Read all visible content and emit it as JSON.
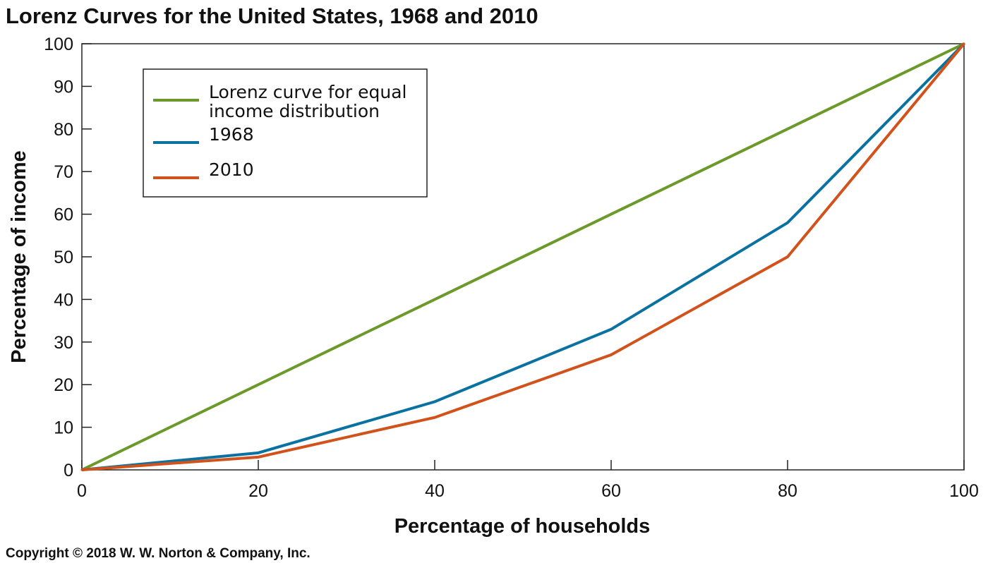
{
  "chart_data": {
    "type": "line",
    "title": "Lorenz Curves for the United States, 1968 and 2010",
    "xlabel": "Percentage of households",
    "ylabel": "Percentage of income",
    "xlim": [
      0,
      100
    ],
    "ylim": [
      0,
      100
    ],
    "xticks": [
      "0",
      "20",
      "40",
      "60",
      "80",
      "100"
    ],
    "yticks": [
      "0",
      "10",
      "20",
      "30",
      "40",
      "50",
      "60",
      "70",
      "80",
      "90",
      "100"
    ],
    "grid": false,
    "legend_position": "top-left",
    "x": [
      0,
      20,
      40,
      60,
      80,
      100
    ],
    "series": [
      {
        "name": "Lorenz curve for equal income distribution",
        "legend_lines": [
          "Lorenz curve for equal",
          "income distribution"
        ],
        "color": "#6b9a2b",
        "values": [
          0,
          20,
          40,
          60,
          80,
          100
        ]
      },
      {
        "name": "1968",
        "legend_lines": [
          "1968"
        ],
        "color": "#0a72a0",
        "values": [
          0,
          4,
          16,
          33,
          58,
          100
        ]
      },
      {
        "name": "2010",
        "legend_lines": [
          "2010"
        ],
        "color": "#d2521c",
        "values": [
          0,
          3,
          12.3,
          27,
          50,
          100
        ]
      }
    ]
  },
  "copyright": "Copyright © 2018 W. W. Norton & Company, Inc."
}
